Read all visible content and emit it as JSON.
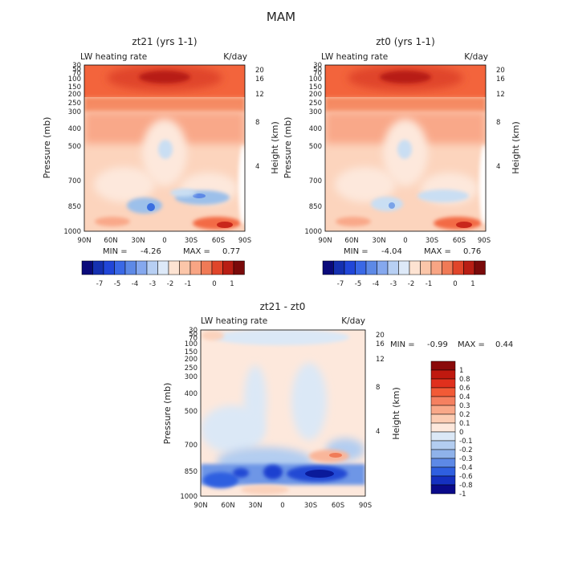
{
  "figure_title": "MAM",
  "colors": {
    "deep_red": "#8a0a0a",
    "red": "#e0452a",
    "light_orange": "#fbd7c0",
    "pale": "#fdebdf",
    "light_blue": "#c9def3",
    "blue": "#2a5be0",
    "deep_blue": "#0a0a8a"
  },
  "chart_data": [
    {
      "type": "heatmap",
      "title": "zt21 (yrs 1-1)",
      "subtitle_left": "LW heating rate",
      "subtitle_right": "K/day",
      "xlabel": "",
      "ylabel": "Pressure (mb)",
      "ylabel_right": "Height (km)",
      "x_ticks": [
        "90N",
        "60N",
        "30N",
        "0",
        "30S",
        "60S",
        "90S"
      ],
      "y_ticks": [
        30,
        50,
        70,
        100,
        150,
        200,
        250,
        300,
        400,
        500,
        700,
        850,
        1000
      ],
      "y_ticks_right": [
        20,
        16,
        12,
        8,
        4
      ],
      "min_label": "MIN = ",
      "min": -4.26,
      "max_label": "MAX = ",
      "max": 0.77,
      "colorbar_labels": [
        "-7",
        "-5",
        "-4",
        "-3",
        "-2",
        "-1",
        "0",
        "1"
      ]
    },
    {
      "type": "heatmap",
      "title": "zt0 (yrs 1-1)",
      "subtitle_left": "LW heating rate",
      "subtitle_right": "K/day",
      "xlabel": "",
      "ylabel": "Pressure (mb)",
      "ylabel_right": "Height (km)",
      "x_ticks": [
        "90N",
        "60N",
        "30N",
        "0",
        "30S",
        "60S",
        "90S"
      ],
      "y_ticks": [
        30,
        50,
        70,
        100,
        150,
        200,
        250,
        300,
        400,
        500,
        700,
        850,
        1000
      ],
      "y_ticks_right": [
        20,
        16,
        12,
        8,
        4
      ],
      "min_label": "MIN = ",
      "min": -4.04,
      "max_label": "MAX = ",
      "max": 0.76,
      "colorbar_labels": [
        "-7",
        "-5",
        "-4",
        "-3",
        "-2",
        "-1",
        "0",
        "1"
      ]
    },
    {
      "type": "heatmap",
      "title": "zt21 - zt0",
      "subtitle_left": "LW heating rate",
      "subtitle_right": "K/day",
      "xlabel": "",
      "ylabel": "Pressure (mb)",
      "ylabel_right": "Height (km)",
      "x_ticks": [
        "90N",
        "60N",
        "30N",
        "0",
        "30S",
        "60S",
        "90S"
      ],
      "y_ticks": [
        30,
        50,
        70,
        100,
        150,
        200,
        250,
        300,
        400,
        500,
        700,
        850,
        1000
      ],
      "y_ticks_right": [
        20,
        16,
        12,
        8,
        4
      ],
      "min_label": "MIN = ",
      "min": -0.99,
      "max_label": "MAX = ",
      "max": 0.44,
      "colorbar_labels": [
        "1",
        "0.8",
        "0.6",
        "0.4",
        "0.3",
        "0.2",
        "0.1",
        "0",
        "-0.1",
        "-0.2",
        "-0.3",
        "-0.4",
        "-0.6",
        "-0.8",
        "-1"
      ]
    }
  ]
}
